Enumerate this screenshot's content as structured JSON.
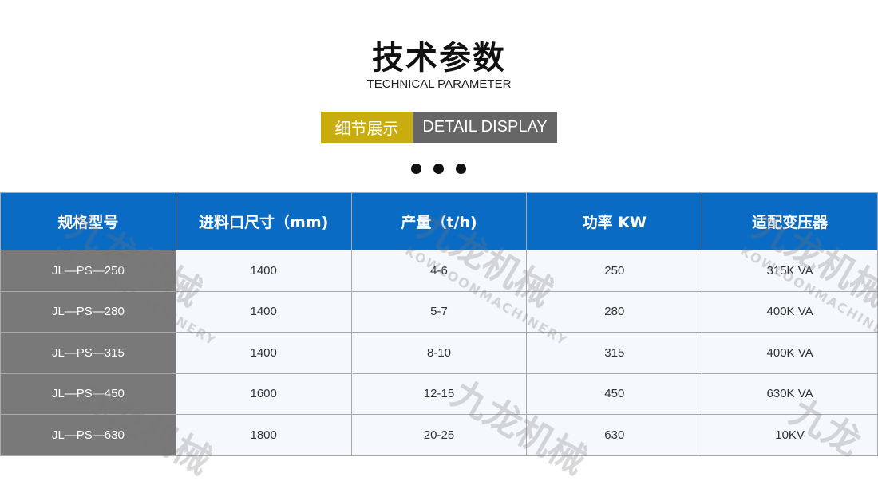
{
  "header": {
    "title": "技术参数",
    "subtitle": "TECHNICAL PARAMETER"
  },
  "badge": {
    "cn": "细节展示",
    "en": "DETAIL DISPLAY",
    "colors": {
      "cn_bg": "#c9ac0e",
      "en_bg": "#666666"
    }
  },
  "table": {
    "columns": [
      "规格型号",
      "进料口尺寸（mm)",
      "产量（t/h)",
      "功率 KW",
      "适配变压器"
    ],
    "rows": [
      [
        "JL—PS—250",
        "1400",
        "4-6",
        "250",
        "315K VA"
      ],
      [
        "JL—PS—280",
        "1400",
        "5-7",
        "280",
        "400K VA"
      ],
      [
        "JL—PS—315",
        "1400",
        "8-10",
        "315",
        "400K VA"
      ],
      [
        "JL—PS—450",
        "1600",
        "12-15",
        "450",
        "630K VA"
      ],
      [
        "JL—PS—630",
        "1800",
        "20-25",
        "630",
        "10KV"
      ]
    ],
    "header_color": "#0a6bc4"
  },
  "watermark": {
    "cn": "九龙机械",
    "en": "KOWLOONMACHINERY"
  }
}
